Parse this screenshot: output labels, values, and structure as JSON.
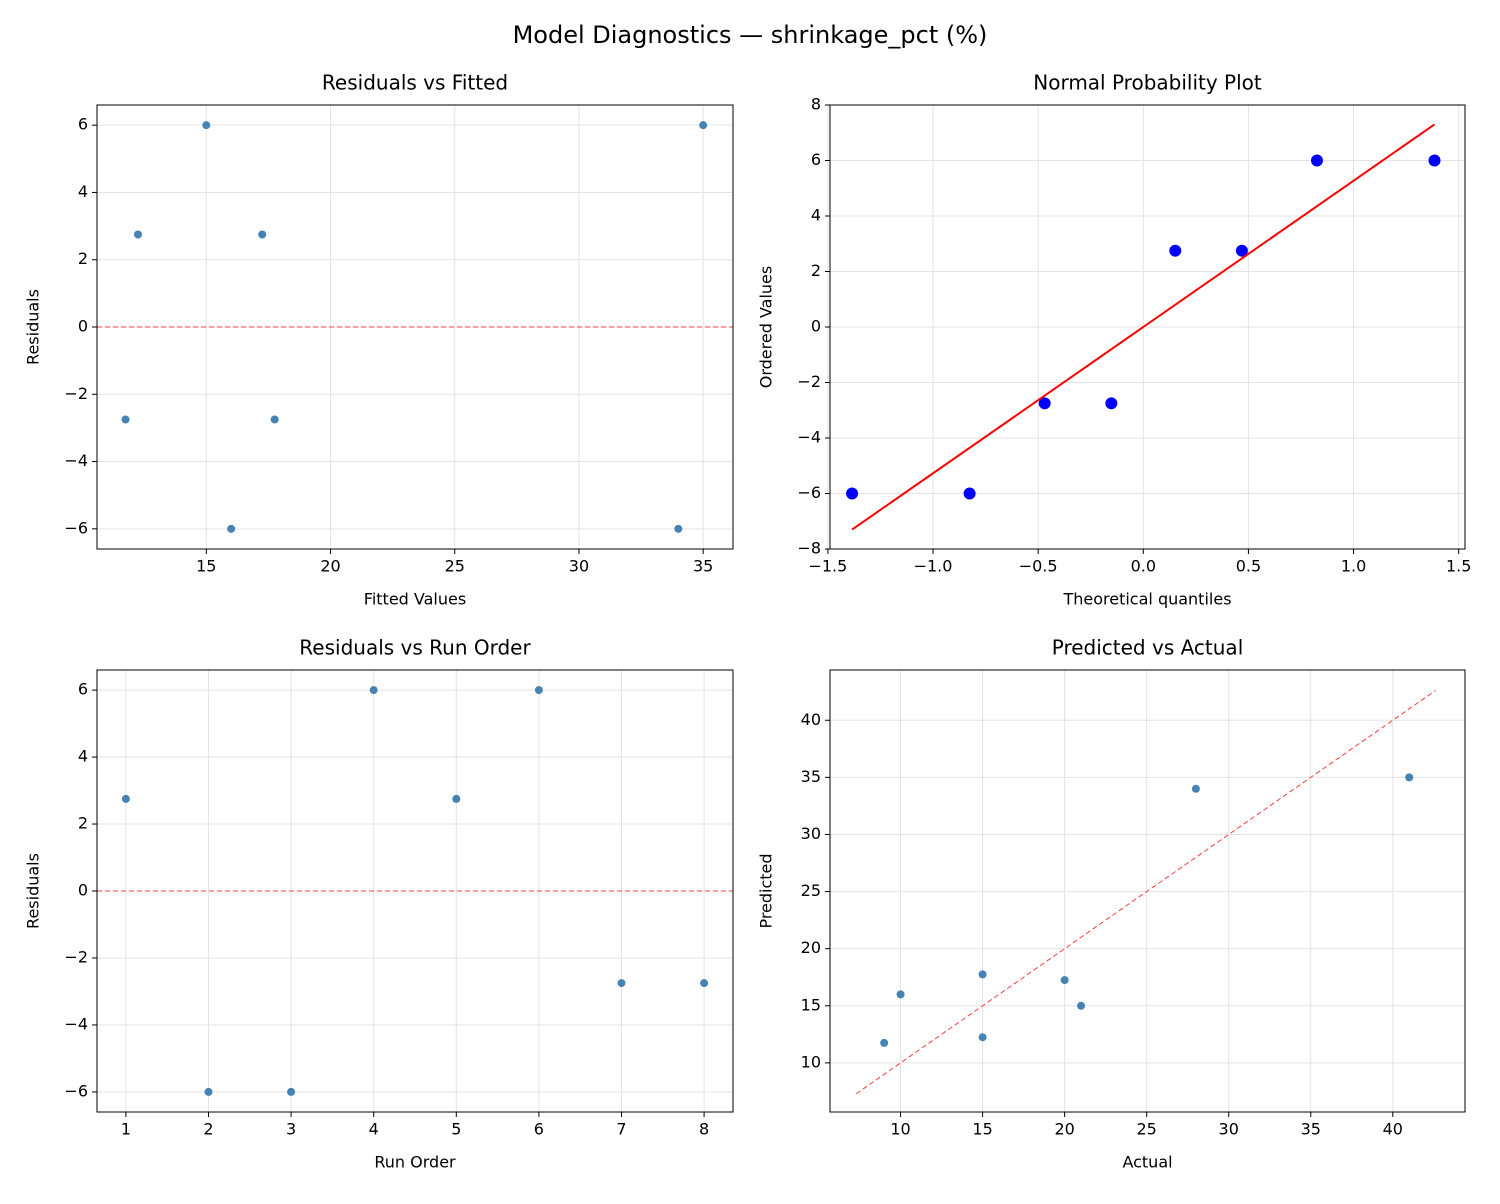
{
  "title": "Model Diagnostics — shrinkage_pct (%)",
  "chart_data": [
    {
      "type": "scatter",
      "title": "Residuals vs Fitted",
      "xlabel": "Fitted Values",
      "ylabel": "Residuals",
      "xlim": [
        10.6,
        36.2
      ],
      "ylim": [
        -6.6,
        6.6
      ],
      "xticks": [
        15,
        20,
        25,
        30,
        35
      ],
      "yticks": [
        {
          "value": -6,
          "label": "−6"
        },
        {
          "value": -4,
          "label": "−4"
        },
        {
          "value": -2,
          "label": "−2"
        },
        0,
        2,
        4,
        6
      ],
      "grid": true,
      "hline": {
        "value": 0,
        "color": "#f04040",
        "style": "dashed"
      },
      "series": [
        {
          "type": "scatter",
          "color": "#4682b4",
          "x": [
            11.75,
            16,
            17.75,
            12.25,
            17.25,
            15,
            34,
            35
          ],
          "values": [
            -2.75,
            -6,
            -2.75,
            2.75,
            2.75,
            6,
            -6,
            6
          ]
        }
      ]
    },
    {
      "type": "scatter",
      "title": "Normal Probability Plot",
      "xlabel": "Theoretical quantiles",
      "ylabel": "Ordered Values",
      "xlim": [
        -1.49,
        1.53
      ],
      "ylim": [
        -8,
        8
      ],
      "xticks": [
        {
          "value": -1.5,
          "label": "−1.5"
        },
        {
          "value": -1,
          "label": "−1.0"
        },
        {
          "value": -0.5,
          "label": "−0.5"
        },
        {
          "value": 0,
          "label": "0.0"
        },
        0.5,
        {
          "value": 1,
          "label": "1.0"
        },
        1.5
      ],
      "yticks": [
        {
          "value": -8,
          "label": "−8"
        },
        {
          "value": -6,
          "label": "−6"
        },
        {
          "value": -4,
          "label": "−4"
        },
        {
          "value": -2,
          "label": "−2"
        },
        0,
        2,
        4,
        6,
        8
      ],
      "grid": true,
      "series": [
        {
          "type": "scatter",
          "color": "#0000ff",
          "size": 6,
          "x": [
            -1.385,
            -0.826,
            -0.469,
            -0.152,
            0.152,
            0.469,
            0.826,
            1.385
          ],
          "values": [
            -6,
            -6,
            -2.75,
            -2.75,
            2.75,
            2.75,
            6,
            6
          ]
        },
        {
          "type": "line",
          "color": "#ff0000",
          "x": [
            -1.385,
            1.385
          ],
          "values": [
            -7.3,
            7.3
          ]
        }
      ]
    },
    {
      "type": "scatter",
      "title": "Residuals vs Run Order",
      "xlabel": "Run Order",
      "ylabel": "Residuals",
      "xlim": [
        0.65,
        8.35
      ],
      "ylim": [
        -6.6,
        6.6
      ],
      "xticks": [
        1,
        2,
        3,
        4,
        5,
        6,
        7,
        8
      ],
      "yticks": [
        {
          "value": -6,
          "label": "−6"
        },
        {
          "value": -4,
          "label": "−4"
        },
        {
          "value": -2,
          "label": "−2"
        },
        0,
        2,
        4,
        6
      ],
      "grid": true,
      "hline": {
        "value": 0,
        "color": "#f04040",
        "style": "dashed"
      },
      "series": [
        {
          "type": "scatter",
          "color": "#4682b4",
          "x": [
            1,
            2,
            3,
            4,
            5,
            6,
            7,
            8
          ],
          "values": [
            2.75,
            -6,
            -6,
            6,
            2.75,
            6,
            -2.75,
            -2.75
          ]
        }
      ]
    },
    {
      "type": "scatter",
      "title": "Predicted vs Actual",
      "xlabel": "Actual",
      "ylabel": "Predicted",
      "xlim": [
        5.7,
        44.4
      ],
      "ylim": [
        5.7,
        44.4
      ],
      "xticks": [
        10,
        15,
        20,
        25,
        30,
        35,
        40
      ],
      "yticks": [
        10,
        15,
        20,
        25,
        30,
        35,
        40
      ],
      "grid": true,
      "series": [
        {
          "type": "scatter",
          "color": "#4682b4",
          "x": [
            9,
            10,
            15,
            15,
            20,
            21,
            28,
            41
          ],
          "values": [
            11.75,
            16,
            17.75,
            12.25,
            17.25,
            15,
            34,
            35
          ]
        },
        {
          "type": "line",
          "color": "#f04040",
          "style": "dashed",
          "x": [
            7.3,
            42.6
          ],
          "values": [
            7.3,
            42.6
          ]
        }
      ]
    }
  ]
}
